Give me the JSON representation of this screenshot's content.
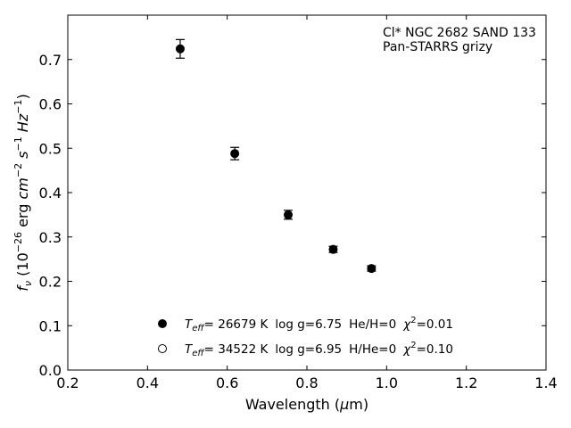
{
  "chart_data": {
    "type": "scatter",
    "annotation": [
      "Cl* NGC 2682 SAND 133",
      "Pan-STARRS grizy"
    ],
    "xlabel": {
      "main": "Wavelength (",
      "greek": "μ",
      "rest": "m)"
    },
    "ylabel": {
      "f": "f",
      "nu": "ν",
      "unit_open": " (10",
      "exp1": "−26",
      "erg": " erg ",
      "cm": "cm",
      "exp2": "−2",
      "s": " s",
      "exp3": "−1",
      "hz": " Hz",
      "exp4": "−1",
      "close": ")"
    },
    "xlim": [
      0.2,
      1.4
    ],
    "ylim": [
      0.0,
      0.8
    ],
    "xticks": [
      0.2,
      0.4,
      0.6,
      0.8,
      1.0,
      1.2,
      1.4
    ],
    "xtick_labels": [
      "0.2",
      "0.4",
      "0.6",
      "0.8",
      "1.0",
      "1.2",
      "1.4"
    ],
    "yticks": [
      0.0,
      0.1,
      0.2,
      0.3,
      0.4,
      0.5,
      0.6,
      0.7
    ],
    "ytick_labels": [
      "0.0",
      "0.1",
      "0.2",
      "0.3",
      "0.4",
      "0.5",
      "0.6",
      "0.7"
    ],
    "grid": false,
    "legend_position": "lower-center",
    "series": [
      {
        "marker": "filled-circle",
        "color": "#000000",
        "x": [
          0.482,
          0.619,
          0.753,
          0.866,
          0.962
        ],
        "y": [
          0.724,
          0.488,
          0.35,
          0.272,
          0.229
        ],
        "yerr": [
          0.021,
          0.014,
          0.01,
          0.007,
          0.006
        ]
      },
      {
        "marker": "open-circle",
        "color": "#000000",
        "x": [
          0.482,
          0.619,
          0.753,
          0.866,
          0.962
        ],
        "y": [
          0.724,
          0.488,
          0.348,
          0.271,
          0.228
        ],
        "yerr": [
          0.0,
          0.0,
          0.0,
          0.0,
          0.0
        ]
      }
    ],
    "legend": [
      {
        "marker": "filled-circle",
        "teff": "T",
        "teff_sub": "eff",
        "teff_val": "= 26679 K",
        "logg": "log g=6.75",
        "comp": "He/H=0",
        "chi": "χ",
        "chi_sup": "2",
        "chi_val": "=0.01"
      },
      {
        "marker": "open-circle",
        "teff": "T",
        "teff_sub": "eff",
        "teff_val": "= 34522 K",
        "logg": "log g=6.95",
        "comp": "H/He=0",
        "chi": "χ",
        "chi_sup": "2",
        "chi_val": "=0.10"
      }
    ]
  }
}
